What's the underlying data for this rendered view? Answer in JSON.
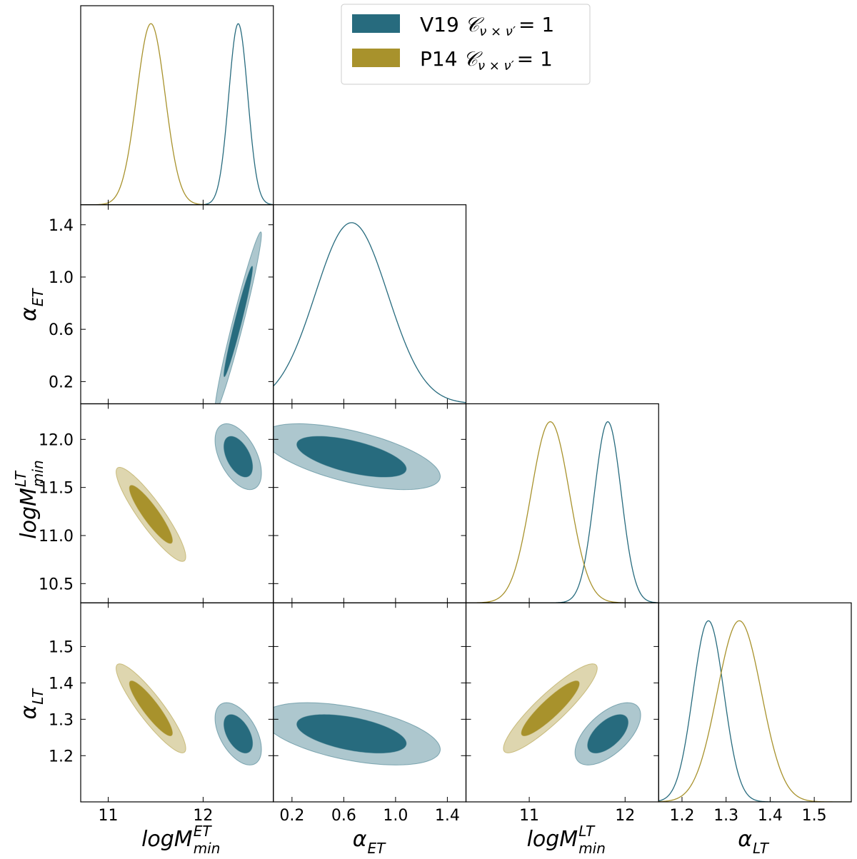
{
  "chart_data": {
    "type": "corner",
    "params": [
      {
        "base": "logM",
        "sup": "ET",
        "sub": "min",
        "xlim": [
          10.71,
          12.74
        ],
        "xticks": [
          11,
          12
        ],
        "ylim": null,
        "yticks": null
      },
      {
        "base": "α",
        "sup": null,
        "sub": "ET",
        "xlim": [
          0.056,
          1.544
        ],
        "xticks": [
          0.2,
          0.6,
          {
            "value": 1.0,
            "label": "1.0"
          },
          1.4
        ],
        "ylim": [
          0.03,
          1.553
        ],
        "yticks": [
          0.2,
          0.6,
          {
            "value": 1.0,
            "label": "1.0"
          },
          1.4
        ]
      },
      {
        "base": "logM",
        "sup": "LT",
        "sub": "min",
        "xlim": [
          10.34,
          12.35
        ],
        "xticks": [
          11,
          12
        ],
        "ylim": [
          10.3,
          12.37
        ],
        "yticks": [
          10.5,
          {
            "value": 11.0,
            "label": "11.0"
          },
          11.5,
          {
            "value": 12.0,
            "label": "12.0"
          }
        ]
      },
      {
        "base": "α",
        "sup": null,
        "sub": "LT",
        "xlim": [
          1.147,
          1.584
        ],
        "xticks": [
          1.2,
          1.3,
          1.4,
          1.5
        ],
        "ylim": [
          1.073,
          1.62
        ],
        "yticks": [
          1.2,
          1.3,
          1.4,
          1.5
        ]
      }
    ],
    "legend_math": {
      "symbol": "𝒞",
      "sub": "ν × ν′",
      "rest": "= 1"
    },
    "legend_position": "upper-center",
    "contour_levels": [
      0.68,
      0.95
    ],
    "series": [
      {
        "name": "V19",
        "color": "#276b7e",
        "mean": [
          12.37,
          0.66,
          11.82,
          1.26
        ],
        "sigma": [
          0.1,
          0.28,
          0.14,
          0.035
        ],
        "corr": [
          [
            1,
            0.97,
            -0.5,
            -0.5
          ],
          [
            0.97,
            1,
            -0.6,
            -0.5
          ],
          [
            -0.5,
            -0.6,
            1,
            0.6
          ],
          [
            -0.5,
            -0.5,
            0.6,
            1
          ]
        ]
      },
      {
        "name": "P14",
        "color": "#a8922c",
        "mean": [
          11.45,
          null,
          11.22,
          1.33
        ],
        "sigma": [
          0.15,
          null,
          0.2,
          0.05
        ],
        "corr": [
          [
            1,
            null,
            -0.9,
            -0.9
          ],
          [
            null,
            null,
            null,
            null
          ],
          [
            -0.9,
            null,
            1,
            0.9
          ],
          [
            -0.9,
            null,
            0.9,
            1
          ]
        ]
      }
    ]
  }
}
